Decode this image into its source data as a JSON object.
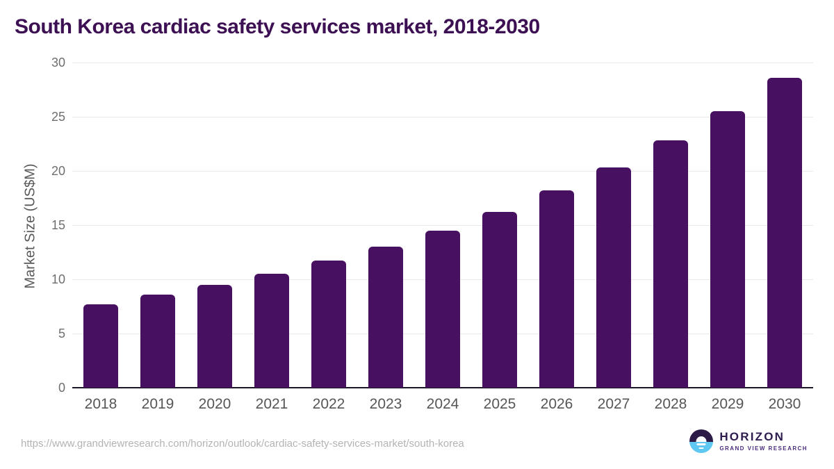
{
  "chart_data": {
    "type": "bar",
    "title": "South Korea cardiac safety services market, 2018-2030",
    "categories": [
      "2018",
      "2019",
      "2020",
      "2021",
      "2022",
      "2023",
      "2024",
      "2025",
      "2026",
      "2027",
      "2028",
      "2029",
      "2030"
    ],
    "values": [
      7.7,
      8.6,
      9.5,
      10.5,
      11.7,
      13.0,
      14.5,
      16.2,
      18.2,
      20.3,
      22.8,
      25.5,
      28.6
    ],
    "xlabel": "",
    "ylabel": "Market Size (US$M)",
    "ylim": [
      0,
      30
    ],
    "yticks": [
      0,
      5,
      10,
      15,
      20,
      25,
      30
    ],
    "grid": true,
    "legend": false,
    "bar_color": "#481060",
    "title_color": "#3c1053",
    "gridline_color": "#e9e9e9",
    "axis_line_color": "#1b1626"
  },
  "footer": {
    "source_url": "https://www.grandviewresearch.com/horizon/outlook/cardiac-safety-services-market/south-korea",
    "logo": {
      "name": "HORIZON",
      "subtitle": "GRAND VIEW RESEARCH"
    }
  }
}
